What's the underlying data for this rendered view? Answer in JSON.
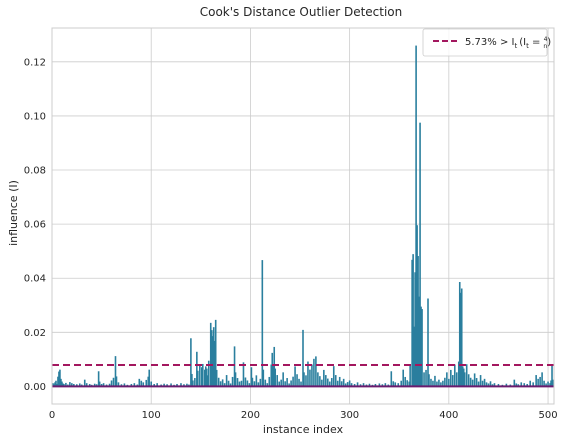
{
  "chart_data": {
    "type": "bar",
    "title": "Cook's Distance Outlier Detection",
    "xlabel": "instance index",
    "ylabel": "influence (I)",
    "xlim": [
      0,
      506
    ],
    "ylim": [
      -0.0065,
      0.1325
    ],
    "xticks": [
      0,
      100,
      200,
      300,
      400,
      500
    ],
    "yticks": [
      0.0,
      0.02,
      0.04,
      0.06,
      0.08,
      0.1,
      0.12
    ],
    "ytick_labels": [
      "0.00",
      "0.02",
      "0.04",
      "0.06",
      "0.08",
      "0.10",
      "0.12"
    ],
    "grid": true,
    "legend_position": "top-right",
    "bar_color": "#2a7f9e",
    "baseline_color": "#6a1b6e",
    "threshold_color": "#a3175f",
    "threshold": {
      "value": 0.0079,
      "label": "5.73% > I_t (I_t = 4/n)",
      "label_text": "5.73% > I",
      "label_sub": "t",
      "label_formula_prefix": "(I",
      "label_formula_eq": " = ",
      "label_num": "4",
      "label_den": "n",
      "label_close": ")"
    },
    "values": [
      [
        1,
        0.0012
      ],
      [
        2,
        0.0008
      ],
      [
        3,
        0.0015
      ],
      [
        4,
        0.0021
      ],
      [
        5,
        0.0009
      ],
      [
        6,
        0.0036
      ],
      [
        7,
        0.0055
      ],
      [
        8,
        0.0062
      ],
      [
        9,
        0.0028
      ],
      [
        10,
        0.0018
      ],
      [
        11,
        0.0011
      ],
      [
        12,
        0.0009
      ],
      [
        14,
        0.0013
      ],
      [
        16,
        0.0007
      ],
      [
        18,
        0.0016
      ],
      [
        20,
        0.0012
      ],
      [
        22,
        0.0009
      ],
      [
        25,
        0.0008
      ],
      [
        28,
        0.0011
      ],
      [
        30,
        0.0007
      ],
      [
        33,
        0.0025
      ],
      [
        35,
        0.0012
      ],
      [
        38,
        0.0009
      ],
      [
        40,
        0.0006
      ],
      [
        43,
        0.001
      ],
      [
        45,
        0.0008
      ],
      [
        47,
        0.0056
      ],
      [
        48,
        0.0018
      ],
      [
        50,
        0.0009
      ],
      [
        52,
        0.0012
      ],
      [
        55,
        0.0007
      ],
      [
        58,
        0.001
      ],
      [
        60,
        0.0022
      ],
      [
        62,
        0.0032
      ],
      [
        64,
        0.0112
      ],
      [
        65,
        0.0037
      ],
      [
        67,
        0.0015
      ],
      [
        70,
        0.0008
      ],
      [
        73,
        0.0011
      ],
      [
        76,
        0.0006
      ],
      [
        80,
        0.0009
      ],
      [
        83,
        0.0012
      ],
      [
        86,
        0.0007
      ],
      [
        88,
        0.0028
      ],
      [
        90,
        0.0021
      ],
      [
        92,
        0.0015
      ],
      [
        95,
        0.0024
      ],
      [
        97,
        0.0036
      ],
      [
        98,
        0.0062
      ],
      [
        100,
        0.0018
      ],
      [
        103,
        0.0009
      ],
      [
        106,
        0.0012
      ],
      [
        110,
        0.0007
      ],
      [
        113,
        0.001
      ],
      [
        116,
        0.0008
      ],
      [
        120,
        0.0011
      ],
      [
        123,
        0.0006
      ],
      [
        126,
        0.0009
      ],
      [
        130,
        0.0012
      ],
      [
        133,
        0.0008
      ],
      [
        136,
        0.001
      ],
      [
        138,
        0.0007
      ],
      [
        140,
        0.0178
      ],
      [
        141,
        0.0046
      ],
      [
        142,
        0.0022
      ],
      [
        144,
        0.0031
      ],
      [
        146,
        0.0128
      ],
      [
        147,
        0.0058
      ],
      [
        149,
        0.0079
      ],
      [
        151,
        0.0071
      ],
      [
        152,
        0.0083
      ],
      [
        154,
        0.0062
      ],
      [
        155,
        0.0074
      ],
      [
        156,
        0.0066
      ],
      [
        157,
        0.0041
      ],
      [
        158,
        0.0095
      ],
      [
        160,
        0.0235
      ],
      [
        161,
        0.0208
      ],
      [
        162,
        0.0186
      ],
      [
        163,
        0.0219
      ],
      [
        164,
        0.0168
      ],
      [
        165,
        0.0246
      ],
      [
        166,
        0.0061
      ],
      [
        168,
        0.0032
      ],
      [
        170,
        0.0019
      ],
      [
        172,
        0.0026
      ],
      [
        174,
        0.0012
      ],
      [
        176,
        0.0042
      ],
      [
        178,
        0.0021
      ],
      [
        180,
        0.0011
      ],
      [
        182,
        0.0035
      ],
      [
        184,
        0.0148
      ],
      [
        185,
        0.0052
      ],
      [
        187,
        0.0031
      ],
      [
        189,
        0.0018
      ],
      [
        191,
        0.0021
      ],
      [
        193,
        0.0089
      ],
      [
        195,
        0.0033
      ],
      [
        197,
        0.0022
      ],
      [
        199,
        0.0012
      ],
      [
        201,
        0.0071
      ],
      [
        202,
        0.0032
      ],
      [
        204,
        0.0019
      ],
      [
        206,
        0.0041
      ],
      [
        208,
        0.0015
      ],
      [
        210,
        0.0028
      ],
      [
        212,
        0.0467
      ],
      [
        213,
        0.0062
      ],
      [
        215,
        0.0025
      ],
      [
        217,
        0.0012
      ],
      [
        219,
        0.0035
      ],
      [
        221,
        0.0081
      ],
      [
        222,
        0.0124
      ],
      [
        223,
        0.0079
      ],
      [
        224,
        0.0146
      ],
      [
        225,
        0.0066
      ],
      [
        227,
        0.0042
      ],
      [
        229,
        0.0018
      ],
      [
        231,
        0.0025
      ],
      [
        233,
        0.0052
      ],
      [
        235,
        0.0019
      ],
      [
        237,
        0.0031
      ],
      [
        239,
        0.0011
      ],
      [
        241,
        0.0022
      ],
      [
        243,
        0.0036
      ],
      [
        245,
        0.0074
      ],
      [
        247,
        0.0045
      ],
      [
        249,
        0.0028
      ],
      [
        251,
        0.0018
      ],
      [
        253,
        0.0209
      ],
      [
        254,
        0.0052
      ],
      [
        256,
        0.0041
      ],
      [
        258,
        0.0092
      ],
      [
        260,
        0.0062
      ],
      [
        262,
        0.0081
      ],
      [
        264,
        0.0102
      ],
      [
        266,
        0.0111
      ],
      [
        268,
        0.0052
      ],
      [
        270,
        0.0038
      ],
      [
        272,
        0.0025
      ],
      [
        274,
        0.0061
      ],
      [
        276,
        0.0042
      ],
      [
        278,
        0.0029
      ],
      [
        280,
        0.0018
      ],
      [
        282,
        0.0031
      ],
      [
        284,
        0.0075
      ],
      [
        286,
        0.0042
      ],
      [
        288,
        0.0021
      ],
      [
        290,
        0.0035
      ],
      [
        292,
        0.0019
      ],
      [
        294,
        0.0028
      ],
      [
        296,
        0.0011
      ],
      [
        298,
        0.0016
      ],
      [
        300,
        0.0022
      ],
      [
        302,
        0.0012
      ],
      [
        305,
        0.0009
      ],
      [
        308,
        0.0015
      ],
      [
        311,
        0.0008
      ],
      [
        314,
        0.0012
      ],
      [
        317,
        0.0007
      ],
      [
        320,
        0.001
      ],
      [
        323,
        0.0006
      ],
      [
        326,
        0.0009
      ],
      [
        330,
        0.0011
      ],
      [
        333,
        0.0008
      ],
      [
        336,
        0.0012
      ],
      [
        339,
        0.0007
      ],
      [
        342,
        0.0056
      ],
      [
        344,
        0.0019
      ],
      [
        346,
        0.0015
      ],
      [
        349,
        0.0012
      ],
      [
        352,
        0.0021
      ],
      [
        354,
        0.0062
      ],
      [
        356,
        0.0035
      ],
      [
        358,
        0.0023
      ],
      [
        360,
        0.0018
      ],
      [
        361,
        0.0082
      ],
      [
        363,
        0.0468
      ],
      [
        364,
        0.0489
      ],
      [
        365,
        0.0221
      ],
      [
        366,
        0.0422
      ],
      [
        367,
        0.126
      ],
      [
        368,
        0.0596
      ],
      [
        369,
        0.0482
      ],
      [
        370,
        0.0332
      ],
      [
        371,
        0.0975
      ],
      [
        372,
        0.0295
      ],
      [
        373,
        0.0286
      ],
      [
        375,
        0.0052
      ],
      [
        377,
        0.0061
      ],
      [
        379,
        0.0325
      ],
      [
        380,
        0.0045
      ],
      [
        382,
        0.0028
      ],
      [
        384,
        0.0021
      ],
      [
        386,
        0.0039
      ],
      [
        388,
        0.0018
      ],
      [
        390,
        0.0025
      ],
      [
        392,
        0.0015
      ],
      [
        394,
        0.0021
      ],
      [
        396,
        0.0032
      ],
      [
        398,
        0.0052
      ],
      [
        400,
        0.0028
      ],
      [
        402,
        0.0061
      ],
      [
        404,
        0.0042
      ],
      [
        406,
        0.0081
      ],
      [
        408,
        0.0052
      ],
      [
        410,
        0.0092
      ],
      [
        411,
        0.0386
      ],
      [
        412,
        0.0346
      ],
      [
        413,
        0.0362
      ],
      [
        414,
        0.0074
      ],
      [
        415,
        0.0066
      ],
      [
        416,
        0.0052
      ],
      [
        418,
        0.0082
      ],
      [
        420,
        0.0045
      ],
      [
        422,
        0.0032
      ],
      [
        424,
        0.0025
      ],
      [
        426,
        0.0048
      ],
      [
        428,
        0.0031
      ],
      [
        430,
        0.0018
      ],
      [
        432,
        0.0042
      ],
      [
        434,
        0.0021
      ],
      [
        436,
        0.0028
      ],
      [
        438,
        0.0015
      ],
      [
        440,
        0.0011
      ],
      [
        442,
        0.0019
      ],
      [
        444,
        0.0008
      ],
      [
        446,
        0.0012
      ],
      [
        450,
        0.0009
      ],
      [
        454,
        0.0006
      ],
      [
        458,
        0.001
      ],
      [
        462,
        0.0007
      ],
      [
        466,
        0.0025
      ],
      [
        468,
        0.0011
      ],
      [
        470,
        0.0008
      ],
      [
        473,
        0.0015
      ],
      [
        476,
        0.0012
      ],
      [
        479,
        0.0009
      ],
      [
        482,
        0.0021
      ],
      [
        485,
        0.0015
      ],
      [
        488,
        0.0042
      ],
      [
        490,
        0.0028
      ],
      [
        492,
        0.0035
      ],
      [
        494,
        0.0052
      ],
      [
        496,
        0.0021
      ],
      [
        498,
        0.0011
      ],
      [
        500,
        0.0018
      ],
      [
        502,
        0.0012
      ],
      [
        503,
        0.0022
      ],
      [
        504,
        0.0081
      ],
      [
        505,
        0.0025
      ]
    ]
  }
}
